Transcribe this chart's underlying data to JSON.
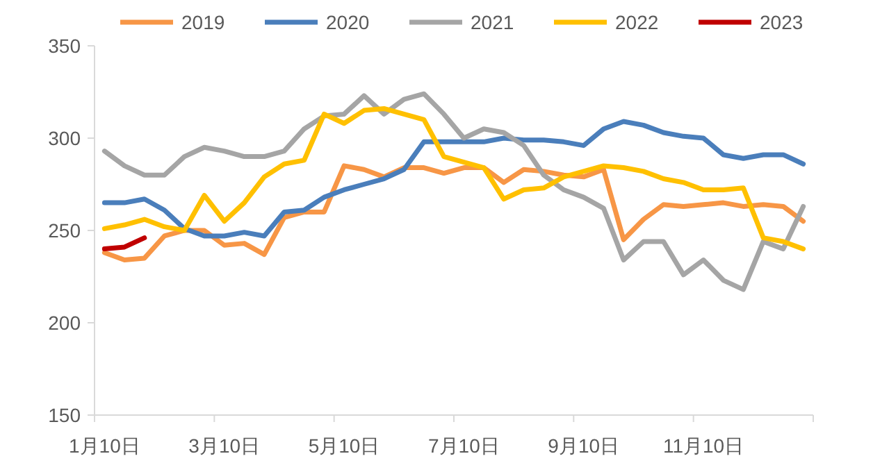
{
  "chart_data": {
    "type": "line",
    "categories": [
      "1月10日",
      null,
      null,
      null,
      null,
      null,
      "3月10日",
      null,
      null,
      null,
      null,
      null,
      "5月10日",
      null,
      null,
      null,
      null,
      null,
      "7月10日",
      null,
      null,
      null,
      null,
      null,
      "9月10日",
      null,
      null,
      null,
      null,
      null,
      "11月10日",
      null,
      null,
      null,
      null,
      null
    ],
    "ylim": [
      150,
      350
    ],
    "yticks": [
      150,
      200,
      250,
      300,
      350
    ],
    "grid": false,
    "legend": "top",
    "marker": "none",
    "line_style": "solid",
    "series": [
      {
        "name": "2019",
        "color": "#f79646",
        "values": [
          238,
          234,
          235,
          247,
          250,
          250,
          242,
          243,
          237,
          257,
          260,
          260,
          285,
          283,
          279,
          284,
          284,
          281,
          284,
          284,
          276,
          283,
          282,
          280,
          279,
          283,
          245,
          256,
          264,
          263,
          264,
          265,
          263,
          264,
          263,
          255
        ]
      },
      {
        "name": "2020",
        "color": "#4a7ebb",
        "values": [
          265,
          265,
          267,
          261,
          251,
          247,
          247,
          249,
          247,
          260,
          261,
          268,
          272,
          275,
          278,
          283,
          298,
          298,
          298,
          298,
          300,
          299,
          299,
          298,
          296,
          305,
          309,
          307,
          303,
          301,
          300,
          291,
          289,
          291,
          291,
          286
        ]
      },
      {
        "name": "2021",
        "color": "#a5a5a5",
        "values": [
          293,
          285,
          280,
          280,
          290,
          295,
          293,
          290,
          290,
          293,
          305,
          312,
          313,
          323,
          313,
          321,
          324,
          313,
          300,
          305,
          303,
          296,
          280,
          272,
          268,
          262,
          234,
          244,
          244,
          226,
          234,
          223,
          218,
          244,
          240,
          263
        ]
      },
      {
        "name": "2022",
        "color": "#ffc000",
        "values": [
          251,
          253,
          256,
          252,
          250,
          269,
          255,
          265,
          279,
          286,
          288,
          313,
          308,
          315,
          316,
          313,
          310,
          290,
          287,
          284,
          267,
          272,
          273,
          279,
          282,
          285,
          284,
          282,
          278,
          276,
          272,
          272,
          273,
          246,
          244,
          240
        ]
      },
      {
        "name": "2023",
        "color": "#c00000",
        "values": [
          240,
          241,
          246,
          null,
          null,
          null,
          null,
          null,
          null,
          null,
          null,
          null,
          null,
          null,
          null,
          null,
          null,
          null,
          null,
          null,
          null,
          null,
          null,
          null,
          null,
          null,
          null,
          null,
          null,
          null,
          null,
          null,
          null,
          null,
          null,
          null
        ]
      }
    ]
  }
}
